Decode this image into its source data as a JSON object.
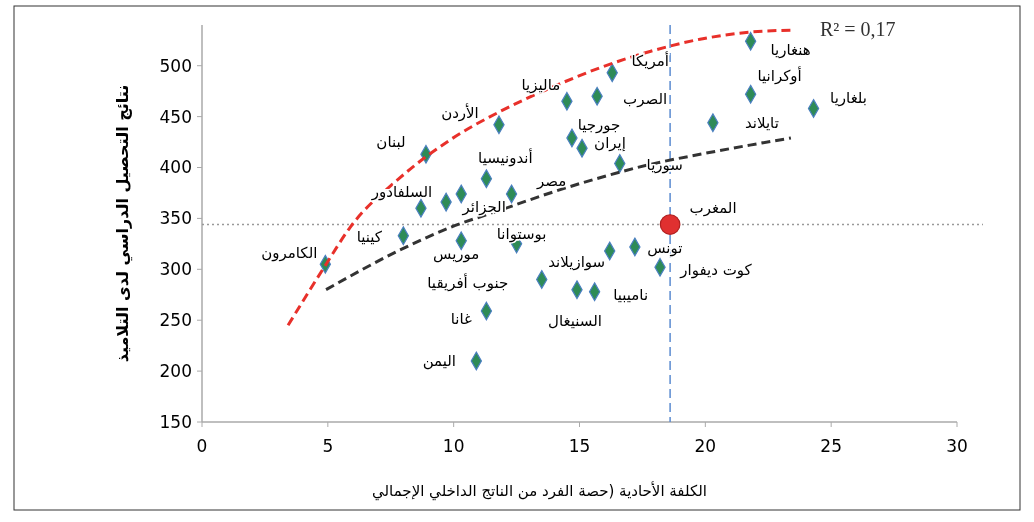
{
  "chart_data": {
    "type": "scatter",
    "xlabel": "الكلفة الأحادية (حصة الفرد من الناتج الداخلي الإجمالي",
    "ylabel": "نتائج التحصيل الدراسي لدى التلاميذ",
    "xlim": [
      0,
      30
    ],
    "ylim": [
      150,
      540
    ],
    "xticks": [
      0,
      5,
      10,
      15,
      20,
      25,
      30
    ],
    "yticks": [
      150,
      200,
      250,
      300,
      350,
      400,
      450,
      500
    ],
    "grid": false,
    "series": [
      {
        "color": "#2e8b57",
        "marker": "diamond",
        "x": [
          4.9,
          8.0,
          8.7,
          9.7,
          10.3,
          8.9,
          10.3,
          11.3,
          11.8,
          12.3,
          12.5,
          13.5,
          11.3,
          10.9,
          14.5,
          15.7,
          16.3,
          14.7,
          15.1,
          16.6,
          16.2,
          14.9,
          15.6,
          17.2,
          18.2,
          21.8,
          21.8,
          20.3,
          24.3
        ],
        "values": [
          305,
          333,
          360,
          366,
          374,
          413,
          328,
          389,
          442,
          374,
          325,
          290,
          259,
          210,
          465,
          470,
          493,
          429,
          419,
          404,
          318,
          280,
          278,
          322,
          302,
          524,
          472,
          444,
          458
        ],
        "value_labels": [
          "الكامرون",
          "كينيا",
          "السلفادور",
          null,
          "الجزائر",
          "لبنان",
          "موريس",
          "أندونيسيا",
          "الأردن",
          "مصر",
          "بوستوانا",
          "جنوب أفريقيا",
          "غانا",
          "اليمن",
          "ماليزيا",
          "الصرب",
          "أمريكا",
          "جورجيا",
          "إيران",
          "سوريا",
          "سوازيلاند",
          "السنيغال",
          "ناميبيا",
          "تونس",
          "كوت ديفوار",
          "هنغاريا",
          "أوكرانيا",
          "تايلاند",
          "بلغاريا"
        ]
      },
      {
        "color": "#e03030",
        "marker": "circle",
        "x": [
          18.6
        ],
        "values": [
          344
        ],
        "value_labels": [
          "المغرب"
        ]
      },
      {
        "type": "line",
        "color": "#e8302a",
        "marker": "none",
        "line_style": "dashed",
        "x": [
          3.42,
          4.93,
          5.88,
          7.87,
          9.85,
          11.84,
          13.83,
          15.81,
          17.8,
          19.79,
          21.77,
          23.56
        ],
        "values": [
          245,
          305,
          341,
          390,
          427,
          455,
          478,
          498,
          514,
          526,
          533,
          535
        ]
      },
      {
        "type": "line",
        "color": "#333333",
        "marker": "none",
        "line_style": "dashed",
        "x": [
          4.93,
          7.87,
          9.85,
          11.84,
          13.83,
          15.81,
          17.8,
          19.79,
          21.77,
          23.4
        ],
        "values": [
          280,
          319,
          341,
          358,
          375,
          390,
          403,
          413,
          422,
          429
        ]
      }
    ],
    "ref_lines": [
      {
        "axis": "y",
        "value": 344,
        "color": "#999999",
        "line_style": "dotted"
      },
      {
        "axis": "x",
        "value": 18.6,
        "color": "#5b8bd0",
        "line_style": "dashed"
      }
    ],
    "annotations": [
      "R² = 0,17"
    ]
  }
}
